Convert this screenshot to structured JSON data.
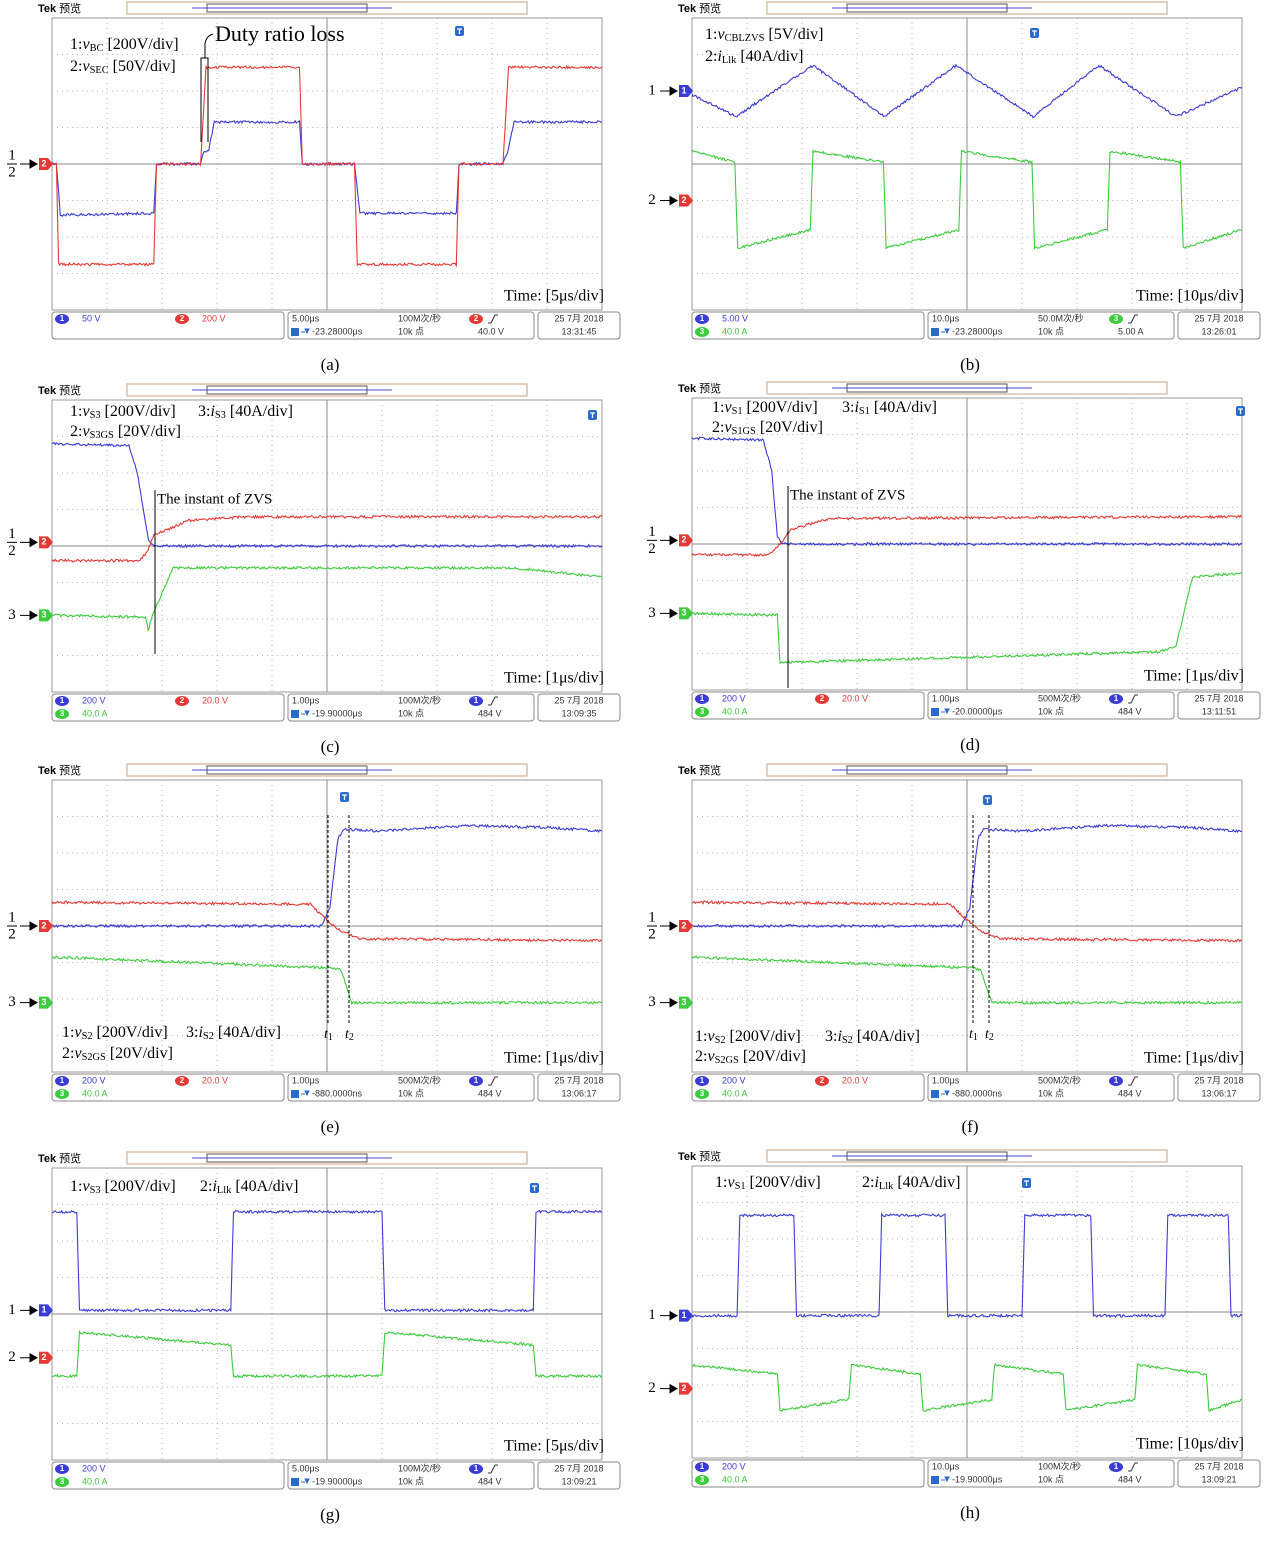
{
  "scope_header": {
    "brand": "Tek",
    "mode": "预览"
  },
  "channel_colors": {
    "1": "#3b3bd6",
    "2": "#e53935",
    "3": "#3dcc3d"
  },
  "panels": [
    {
      "caption": "(a)",
      "labels": [
        {
          "ch": "1:",
          "sym": "v",
          "sub": "BC",
          "scale": "[200V/div]"
        },
        {
          "ch": "2:",
          "sym": "v",
          "sub": "SEC",
          "scale": "[50V/div]"
        }
      ],
      "time": "Time: [5μs/div]",
      "annotation": "Duty ratio loss",
      "markers": [
        "1",
        "2"
      ],
      "status": {
        "channels": [
          {
            "id": "1",
            "value": "50 V"
          },
          {
            "id": "2",
            "value": "200 V"
          }
        ],
        "timebase": "5.00μs",
        "sample_rate": "100M次/秒",
        "trigger_source": "2",
        "trigger_position": "-23.28000μs",
        "record_length": "10k 点",
        "trigger_level": "40.0 V",
        "date": "25 7月 2018",
        "clock": "13:31:45"
      }
    },
    {
      "caption": "(b)",
      "labels": [
        {
          "ch": "1:",
          "sym": "v",
          "sub": "CBLZVS",
          "scale": "[5V/div]"
        },
        {
          "ch": "2:",
          "sym": "i",
          "sub": "Llk",
          "scale": "[40A/div]"
        }
      ],
      "time": "Time: [10μs/div]",
      "markers": [
        "1",
        "2"
      ],
      "status": {
        "channels": [
          {
            "id": "1",
            "value": "5.00 V"
          },
          {
            "id": "3",
            "value": "40.0 A"
          }
        ],
        "timebase": "10.0μs",
        "sample_rate": "50.0M次/秒",
        "trigger_source": "3",
        "trigger_position": "-23.28000μs",
        "record_length": "10k 点",
        "trigger_level": "5.00 A",
        "date": "25 7月 2018",
        "clock": "13:26:01"
      }
    },
    {
      "caption": "(c)",
      "labels": [
        {
          "ch": "1:",
          "sym": "v",
          "sub": "S3",
          "scale": "[200V/div]"
        },
        {
          "ch": "3:",
          "sym": "i",
          "sub": "S3",
          "scale": "[40A/div]"
        },
        {
          "ch": "2:",
          "sym": "v",
          "sub": "S3GS",
          "scale": "[20V/div]"
        }
      ],
      "time": "Time: [1μs/div]",
      "annotation": "The instant of ZVS",
      "markers": [
        "1",
        "2",
        "3"
      ],
      "status": {
        "channels": [
          {
            "id": "1",
            "value": "200 V"
          },
          {
            "id": "2",
            "value": "20.0 V"
          },
          {
            "id": "3",
            "value": "40.0 A"
          }
        ],
        "timebase": "1.00μs",
        "sample_rate": "100M次/秒",
        "trigger_source": "1",
        "trigger_position": "-19.90000μs",
        "record_length": "10k 点",
        "trigger_level": "484 V",
        "date": "25 7月 2018",
        "clock": "13:09:35"
      }
    },
    {
      "caption": "(d)",
      "labels": [
        {
          "ch": "1:",
          "sym": "v",
          "sub": "S1",
          "scale": "[200V/div]"
        },
        {
          "ch": "3:",
          "sym": "i",
          "sub": "S1",
          "scale": "[40A/div]"
        },
        {
          "ch": "2:",
          "sym": "v",
          "sub": "S1GS",
          "scale": "[20V/div]"
        }
      ],
      "time": "Time: [1μs/div]",
      "annotation": "The instant of ZVS",
      "markers": [
        "1",
        "2",
        "3"
      ],
      "status": {
        "channels": [
          {
            "id": "1",
            "value": "200 V"
          },
          {
            "id": "2",
            "value": "20.0 V"
          },
          {
            "id": "3",
            "value": "40.0 A"
          }
        ],
        "timebase": "1.00μs",
        "sample_rate": "500M次/秒",
        "trigger_source": "1",
        "trigger_position": "-20.00000μs",
        "record_length": "10k 点",
        "trigger_level": "484 V",
        "date": "25 7月 2018",
        "clock": "13:11:51"
      }
    },
    {
      "caption": "(e)",
      "labels": [
        {
          "ch": "1:",
          "sym": "v",
          "sub": "S2",
          "scale": "[200V/div]"
        },
        {
          "ch": "3:",
          "sym": "i",
          "sub": "S2",
          "scale": "[40A/div]"
        },
        {
          "ch": "2:",
          "sym": "v",
          "sub": "S2GS",
          "scale": "[20V/div]"
        }
      ],
      "time": "Time: [1μs/div]",
      "instants": [
        {
          "sym": "t",
          "sub": "1"
        },
        {
          "sym": "t",
          "sub": "2"
        }
      ],
      "markers": [
        "1",
        "2",
        "3"
      ],
      "status": {
        "channels": [
          {
            "id": "1",
            "value": "200 V"
          },
          {
            "id": "2",
            "value": "20.0 V"
          },
          {
            "id": "3",
            "value": "40.0 A"
          }
        ],
        "timebase": "1.00μs",
        "sample_rate": "500M次/秒",
        "trigger_source": "1",
        "trigger_position": "-880.0000ns",
        "record_length": "10k 点",
        "trigger_level": "484 V",
        "date": "25 7月 2018",
        "clock": "13:06:17"
      }
    },
    {
      "caption": "(f)",
      "labels": [
        {
          "ch": "1:",
          "sym": "v",
          "sub": "S2",
          "scale": "[200V/div]"
        },
        {
          "ch": "3:",
          "sym": "i",
          "sub": "S2",
          "scale": "[40A/div]"
        },
        {
          "ch": "2:",
          "sym": "v",
          "sub": "S2GS",
          "scale": "[20V/div]"
        }
      ],
      "time": "Time: [1μs/div]",
      "instants": [
        {
          "sym": "t",
          "sub": "1"
        },
        {
          "sym": "t",
          "sub": "2"
        }
      ],
      "markers": [
        "1",
        "2",
        "3"
      ],
      "status": {
        "channels": [
          {
            "id": "1",
            "value": "200 V"
          },
          {
            "id": "2",
            "value": "20.0 V"
          },
          {
            "id": "3",
            "value": "40.0 A"
          }
        ],
        "timebase": "1.00μs",
        "sample_rate": "500M次/秒",
        "trigger_source": "1",
        "trigger_position": "-880.0000ns",
        "record_length": "10k 点",
        "trigger_level": "484 V",
        "date": "25 7月 2018",
        "clock": "13:06:17"
      }
    },
    {
      "caption": "(g)",
      "labels": [
        {
          "ch": "1:",
          "sym": "v",
          "sub": "S3",
          "scale": "[200V/div]"
        },
        {
          "ch": "2:",
          "sym": "i",
          "sub": "Llk",
          "scale": "[40A/div]"
        }
      ],
      "time": "Time: [5μs/div]",
      "markers": [
        "1",
        "2"
      ],
      "status": {
        "channels": [
          {
            "id": "1",
            "value": "200 V"
          },
          {
            "id": "3",
            "value": "40.0 A"
          }
        ],
        "timebase": "5.00μs",
        "sample_rate": "100M次/秒",
        "trigger_source": "1",
        "trigger_position": "-19.90000μs",
        "record_length": "10k 点",
        "trigger_level": "484 V",
        "date": "25 7月 2018",
        "clock": "13:09:21"
      }
    },
    {
      "caption": "(h)",
      "labels": [
        {
          "ch": "1:",
          "sym": "v",
          "sub": "S1",
          "scale": "[200V/div]"
        },
        {
          "ch": "2:",
          "sym": "i",
          "sub": "Llk",
          "scale": "[40A/div]"
        }
      ],
      "time": "Time: [10μs/div]",
      "markers": [
        "1",
        "2"
      ],
      "status": {
        "channels": [
          {
            "id": "1",
            "value": "200 V"
          },
          {
            "id": "3",
            "value": "40.0 A"
          }
        ],
        "timebase": "10.0μs",
        "sample_rate": "100M次/秒",
        "trigger_source": "1",
        "trigger_position": "-19.90000μs",
        "record_length": "10k 点",
        "trigger_level": "484 V",
        "date": "25 7月 2018",
        "clock": "13:09:21"
      }
    }
  ]
}
